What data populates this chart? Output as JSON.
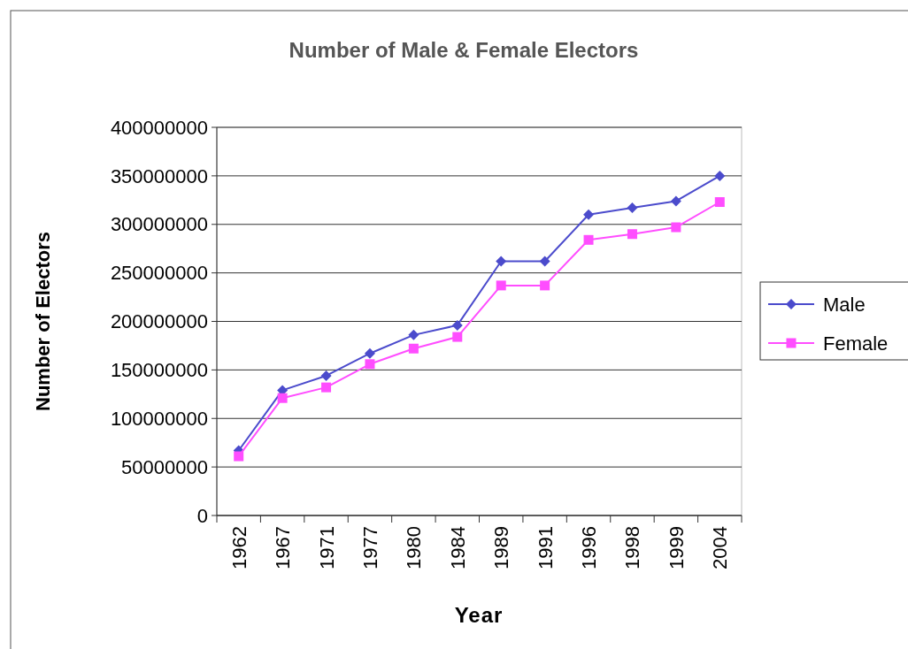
{
  "chart_data": {
    "type": "line",
    "title": "Number of Male & Female Electors",
    "xlabel": "Year",
    "ylabel": "Number of Electors",
    "categories": [
      "1962",
      "1967",
      "1971",
      "1977",
      "1980",
      "1984",
      "1989",
      "1991",
      "1996",
      "1998",
      "1999",
      "2004"
    ],
    "series": [
      {
        "name": "Male",
        "color": "#4b4bcc",
        "marker": "diamond",
        "values": [
          67000000,
          129000000,
          144000000,
          167000000,
          186000000,
          196000000,
          262000000,
          262000000,
          310000000,
          317000000,
          324000000,
          350000000
        ]
      },
      {
        "name": "Female",
        "color": "#ff4dff",
        "marker": "square",
        "values": [
          61000000,
          121000000,
          132000000,
          156000000,
          172000000,
          184000000,
          237000000,
          237000000,
          284000000,
          290000000,
          297000000,
          323000000
        ]
      }
    ],
    "ylim": [
      0,
      400000000
    ],
    "yticks": [
      0,
      50000000,
      100000000,
      150000000,
      200000000,
      250000000,
      300000000,
      350000000,
      400000000
    ],
    "grid": "y",
    "legend": "right",
    "line_style": "solid"
  }
}
